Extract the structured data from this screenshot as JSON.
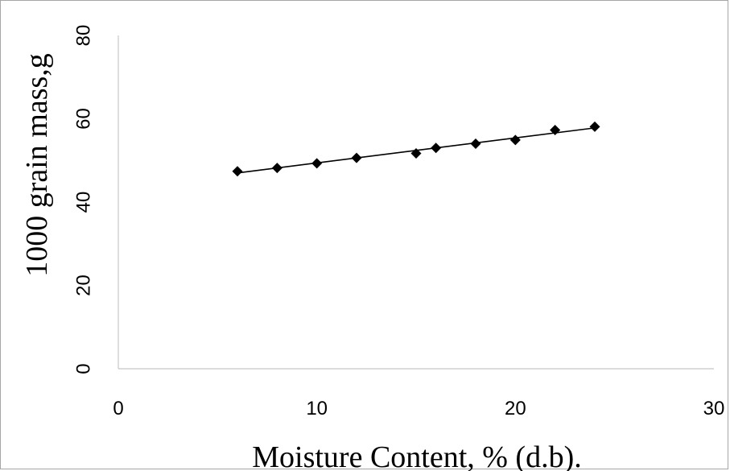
{
  "chart_data": {
    "type": "scatter",
    "xlabel": "Moisture Content, % (d.b).",
    "ylabel": "1000 grain mass,g",
    "xlim": [
      0,
      30
    ],
    "ylim": [
      0,
      80
    ],
    "x_ticks": [
      "0",
      "10",
      "20",
      "30"
    ],
    "y_ticks": [
      "0",
      "20",
      "40",
      "60",
      "80"
    ],
    "grid": false,
    "legend": "none",
    "series": [
      {
        "x": [
          6,
          8,
          10,
          12,
          15,
          16,
          18,
          20,
          22,
          24
        ],
        "y": [
          47.4,
          48.2,
          49.3,
          50.6,
          51.7,
          53.0,
          54.0,
          54.9,
          57.3,
          58.1
        ]
      }
    ],
    "trendline": {
      "x": [
        6,
        24
      ],
      "y": [
        47.0,
        57.8
      ]
    },
    "colors": {
      "marker": "#000000",
      "trendline": "#000000",
      "axis": "#000000"
    }
  }
}
